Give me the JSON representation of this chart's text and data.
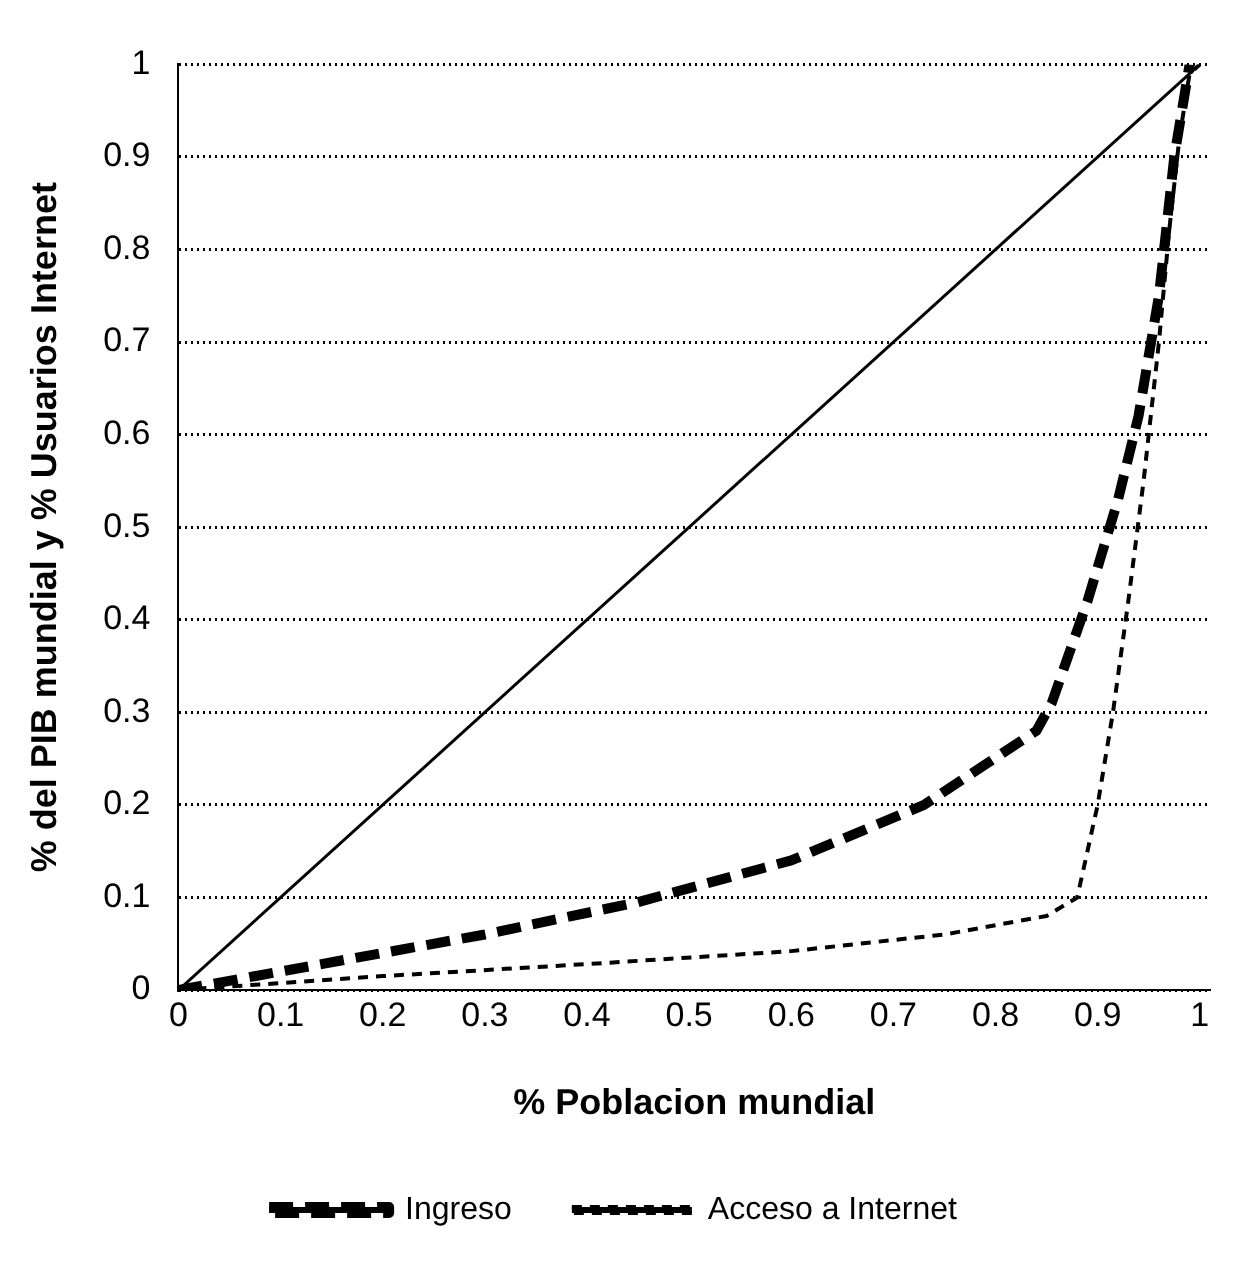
{
  "chart_data": {
    "type": "line",
    "xlabel": "% Poblacion mundial",
    "ylabel": "% del PIB mundial y % Usuarios Internet",
    "xlim": [
      0,
      1.01
    ],
    "xticks": [
      0,
      0.1,
      0.2,
      0.3,
      0.4,
      0.5,
      0.6,
      0.7,
      0.8,
      0.9,
      1
    ],
    "ylim": [
      0,
      1
    ],
    "yticks": [
      0,
      0.1,
      0.2,
      0.3,
      0.4,
      0.5,
      0.6,
      0.7,
      0.8,
      0.9,
      1
    ],
    "grid": "y",
    "legend": "bottom",
    "marker": "none",
    "series": [
      {
        "color": "#000000",
        "line_style": "solid",
        "x": [
          0,
          1
        ],
        "values": [
          0,
          1
        ]
      },
      {
        "name": "Ingreso",
        "color": "#000000",
        "line_style": "dashed",
        "x": [
          0,
          0.1,
          0.2,
          0.3,
          0.45,
          0.6,
          0.73,
          0.84,
          0.855,
          0.89,
          0.92,
          0.94,
          0.96,
          0.975,
          0.99
        ],
        "values": [
          0,
          0.02,
          0.04,
          0.06,
          0.095,
          0.14,
          0.2,
          0.28,
          0.31,
          0.42,
          0.53,
          0.62,
          0.75,
          0.9,
          1
        ]
      },
      {
        "name": "Acceso a Internet",
        "color": "#000000",
        "line_style": "dotted",
        "x": [
          0,
          0.2,
          0.4,
          0.6,
          0.75,
          0.85,
          0.88,
          0.9,
          0.915,
          0.93,
          0.945,
          0.96,
          0.97,
          0.98,
          0.99,
          1
        ],
        "values": [
          0,
          0.015,
          0.028,
          0.042,
          0.06,
          0.08,
          0.1,
          0.2,
          0.3,
          0.42,
          0.55,
          0.7,
          0.82,
          0.92,
          0.99,
          1
        ]
      }
    ]
  }
}
